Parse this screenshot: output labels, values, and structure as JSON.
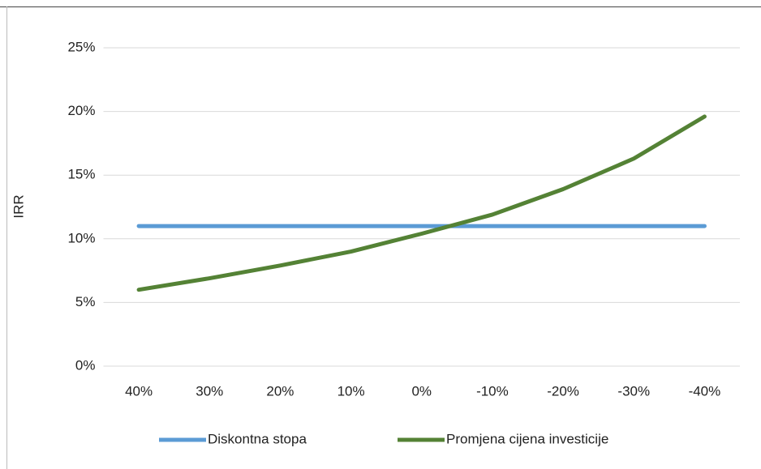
{
  "chart_data": {
    "type": "line",
    "y_label": "IRR",
    "categories": [
      "40%",
      "30%",
      "20%",
      "10%",
      "0%",
      "-10%",
      "-20%",
      "-30%",
      "-40%"
    ],
    "series": [
      {
        "name": "Diskontna stopa",
        "color": "#5b9bd5",
        "values": [
          11,
          11,
          11,
          11,
          11,
          11,
          11,
          11,
          11
        ]
      },
      {
        "name": "Promjena cijena investicije",
        "color": "#548235",
        "values": [
          6.0,
          6.9,
          7.9,
          9.0,
          10.4,
          11.9,
          13.9,
          16.3,
          19.6
        ]
      }
    ],
    "ylim": [
      0,
      25
    ],
    "yticks": [
      {
        "value": 0,
        "label": "0%"
      },
      {
        "value": 5,
        "label": "5%"
      },
      {
        "value": 10,
        "label": "10%"
      },
      {
        "value": 15,
        "label": "15%"
      },
      {
        "value": 20,
        "label": "20%"
      },
      {
        "value": 25,
        "label": "25%"
      }
    ],
    "grid": true,
    "legend": "bottom"
  }
}
